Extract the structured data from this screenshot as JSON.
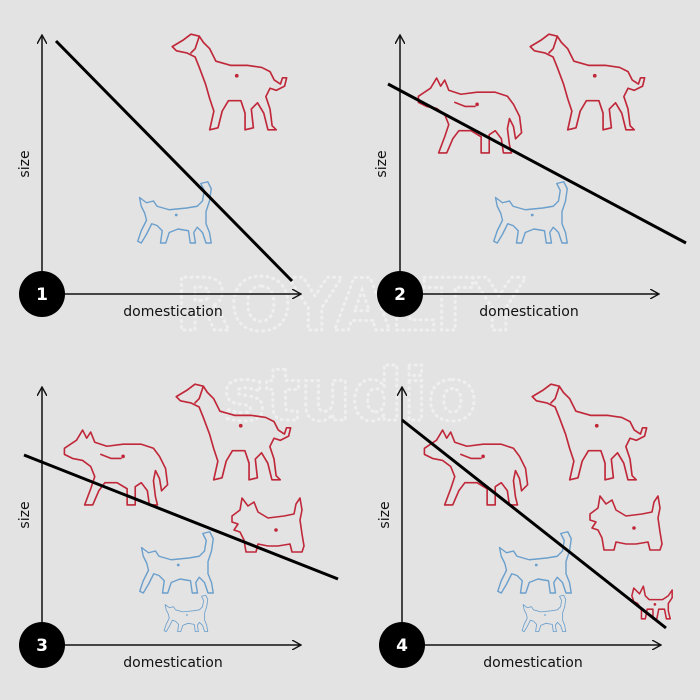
{
  "colors": {
    "background": "#e3e3e3",
    "dog": "#c0283a",
    "cat": "#6b9fcc",
    "axis": "#111111",
    "badge": "#000000"
  },
  "watermark": [
    "ROYALTY",
    "studio"
  ],
  "panels": [
    {
      "number": "1",
      "xlabel": "domestication",
      "ylabel": "size",
      "animals": [
        "hound",
        "cat"
      ]
    },
    {
      "number": "2",
      "xlabel": "domestication",
      "ylabel": "size",
      "animals": [
        "wolf",
        "hound",
        "cat"
      ]
    },
    {
      "number": "3",
      "xlabel": "domestication",
      "ylabel": "size",
      "animals": [
        "wolf",
        "hound",
        "terrier",
        "cat",
        "kitten"
      ]
    },
    {
      "number": "4",
      "xlabel": "domestication",
      "ylabel": "size",
      "animals": [
        "wolf",
        "hound",
        "terrier",
        "chihuahua",
        "cat",
        "kitten"
      ]
    }
  ]
}
